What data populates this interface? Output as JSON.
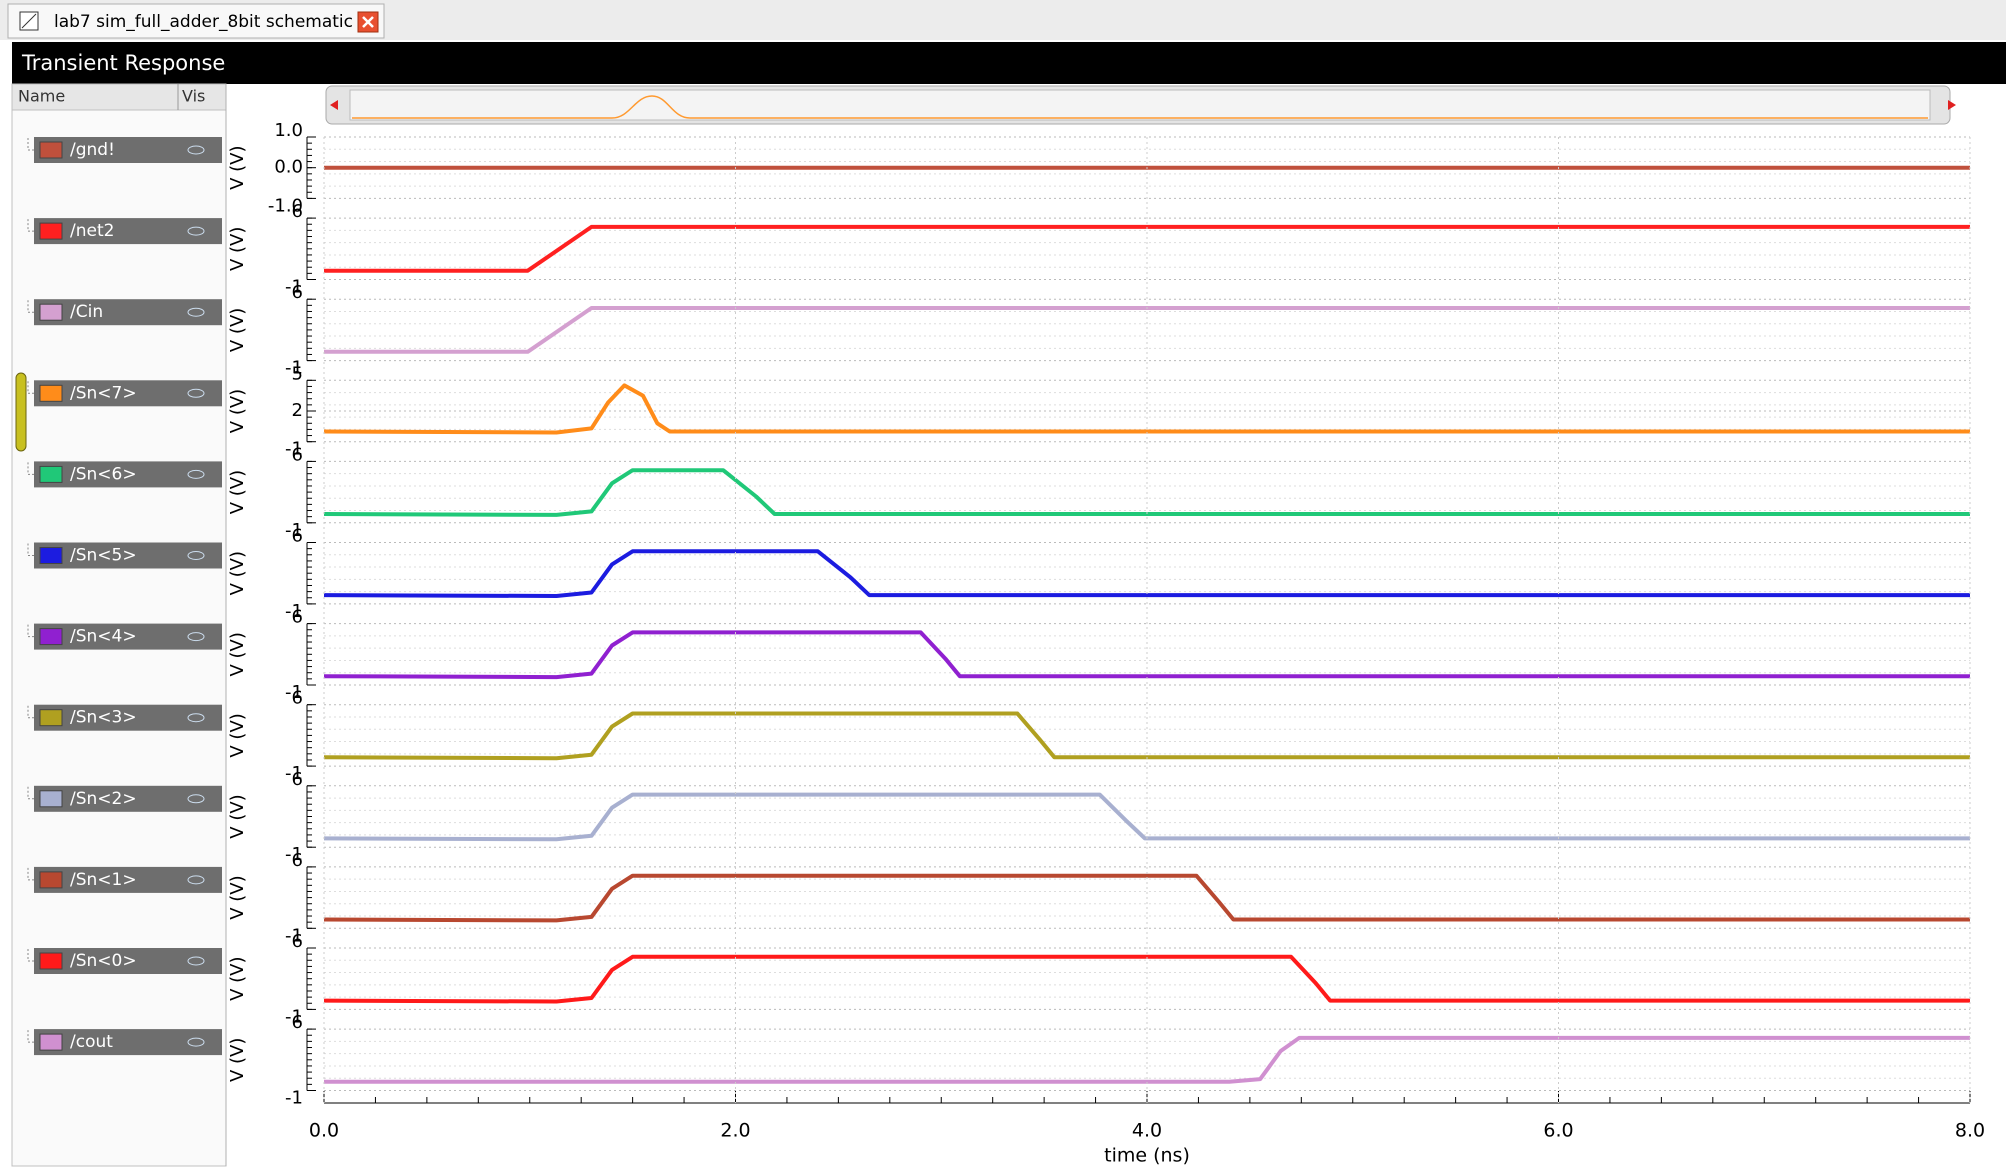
{
  "tab": {
    "title": "lab7 sim_full_adder_8bit schematic"
  },
  "panel": {
    "title": "Transient Response",
    "name_header": "Name",
    "vis_header": "Vis"
  },
  "chart_data": [
    {
      "type": "line",
      "ylabel": "V (V)",
      "x": [
        0,
        8
      ],
      "xlim": [
        0,
        8
      ],
      "ylim": [
        -1,
        1
      ],
      "yticks": [
        {
          "value": -1,
          "label": "-1.0"
        },
        {
          "value": 0,
          "label": "0.0"
        },
        {
          "value": 1,
          "label": "1.0"
        }
      ],
      "grid": true,
      "series": [
        {
          "name": "/gnd!",
          "color": "#c0503c",
          "values": [
            0,
            0
          ]
        }
      ]
    },
    {
      "type": "line",
      "ylabel": "V (V)",
      "x": [
        0,
        0.99,
        1.3,
        8
      ],
      "xlim": [
        0,
        8
      ],
      "ylim": [
        -1,
        6
      ],
      "yticks": [
        -1,
        6
      ],
      "grid": true,
      "series": [
        {
          "name": "/net2",
          "color": "#ff2020",
          "values": [
            0,
            0,
            5,
            5
          ]
        }
      ]
    },
    {
      "type": "line",
      "ylabel": "V (V)",
      "x": [
        0,
        0.99,
        1.3,
        8
      ],
      "xlim": [
        0,
        8
      ],
      "ylim": [
        -1,
        6
      ],
      "yticks": [
        -1,
        6
      ],
      "grid": true,
      "series": [
        {
          "name": "/Cin",
          "color": "#d4a0d0",
          "values": [
            0,
            0,
            5,
            5
          ]
        }
      ]
    },
    {
      "type": "line",
      "ylabel": "V (V)",
      "x": [
        0,
        1.13,
        1.3,
        1.38,
        1.46,
        1.55,
        1.62,
        1.68,
        8
      ],
      "xlim": [
        0,
        8
      ],
      "ylim": [
        -1,
        5
      ],
      "yticks": [
        -1,
        2,
        5
      ],
      "grid": true,
      "series": [
        {
          "name": "/Sn<7>",
          "color": "#ff8c1a",
          "values": [
            0,
            -0.1,
            0.3,
            2.8,
            4.5,
            3.5,
            0.8,
            0,
            0
          ]
        }
      ]
    },
    {
      "type": "line",
      "ylabel": "V (V)",
      "x": [
        0,
        1.13,
        1.3,
        1.4,
        1.5,
        1.94,
        2.1,
        2.19,
        8
      ],
      "xlim": [
        0,
        8
      ],
      "ylim": [
        -1,
        6
      ],
      "yticks": [
        -1,
        6
      ],
      "grid": true,
      "series": [
        {
          "name": "/Sn<6>",
          "color": "#20c878",
          "values": [
            0,
            -0.1,
            0.3,
            3.5,
            5,
            5,
            2,
            0,
            0
          ]
        }
      ]
    },
    {
      "type": "line",
      "ylabel": "V (V)",
      "x": [
        0,
        1.13,
        1.3,
        1.4,
        1.5,
        2.4,
        2.56,
        2.65,
        8
      ],
      "xlim": [
        0,
        8
      ],
      "ylim": [
        -1,
        6
      ],
      "yticks": [
        -1,
        6
      ],
      "grid": true,
      "series": [
        {
          "name": "/Sn<5>",
          "color": "#1c1ce0",
          "values": [
            0,
            -0.1,
            0.3,
            3.5,
            5,
            5,
            2,
            0,
            0
          ]
        }
      ]
    },
    {
      "type": "line",
      "ylabel": "V (V)",
      "x": [
        0,
        1.13,
        1.3,
        1.4,
        1.5,
        2.9,
        3.02,
        3.09,
        8
      ],
      "xlim": [
        0,
        8
      ],
      "ylim": [
        -1,
        6
      ],
      "yticks": [
        -1,
        6
      ],
      "grid": true,
      "series": [
        {
          "name": "/Sn<4>",
          "color": "#9020d0",
          "values": [
            0,
            -0.1,
            0.3,
            3.5,
            5,
            5,
            2,
            0,
            0
          ]
        }
      ]
    },
    {
      "type": "line",
      "ylabel": "V (V)",
      "x": [
        0,
        1.13,
        1.3,
        1.4,
        1.5,
        3.37,
        3.48,
        3.55,
        8
      ],
      "xlim": [
        0,
        8
      ],
      "ylim": [
        -1,
        6
      ],
      "yticks": [
        -1,
        6
      ],
      "grid": true,
      "series": [
        {
          "name": "/Sn<3>",
          "color": "#b0a020",
          "values": [
            0,
            -0.1,
            0.3,
            3.5,
            5,
            5,
            2,
            0,
            0
          ]
        }
      ]
    },
    {
      "type": "line",
      "ylabel": "V (V)",
      "x": [
        0,
        1.13,
        1.3,
        1.4,
        1.5,
        3.77,
        3.9,
        3.99,
        8
      ],
      "xlim": [
        0,
        8
      ],
      "ylim": [
        -1,
        6
      ],
      "yticks": [
        -1,
        6
      ],
      "grid": true,
      "series": [
        {
          "name": "/Sn<2>",
          "color": "#a8b0d0",
          "values": [
            0,
            -0.1,
            0.3,
            3.5,
            5,
            5,
            2,
            0,
            0
          ]
        }
      ]
    },
    {
      "type": "line",
      "ylabel": "V (V)",
      "x": [
        0,
        1.13,
        1.3,
        1.4,
        1.5,
        4.24,
        4.35,
        4.42,
        8
      ],
      "xlim": [
        0,
        8
      ],
      "ylim": [
        -1,
        6
      ],
      "yticks": [
        -1,
        6
      ],
      "grid": true,
      "series": [
        {
          "name": "/Sn<1>",
          "color": "#b84830",
          "values": [
            0,
            -0.1,
            0.3,
            3.5,
            5,
            5,
            2,
            0,
            0
          ]
        }
      ]
    },
    {
      "type": "line",
      "ylabel": "V (V)",
      "x": [
        0,
        1.13,
        1.3,
        1.4,
        1.5,
        4.7,
        4.82,
        4.89,
        8
      ],
      "xlim": [
        0,
        8
      ],
      "ylim": [
        -1,
        6
      ],
      "yticks": [
        -1,
        6
      ],
      "grid": true,
      "series": [
        {
          "name": "/Sn<0>",
          "color": "#ff1a1a",
          "values": [
            0,
            -0.1,
            0.3,
            3.5,
            5,
            5,
            2,
            0,
            0
          ]
        }
      ]
    },
    {
      "type": "line",
      "ylabel": "V (V)",
      "xlabel": "time (ns)",
      "x": [
        0,
        4.4,
        4.55,
        4.65,
        4.74,
        8
      ],
      "xlim": [
        0,
        8
      ],
      "xticks": [
        {
          "value": 0,
          "label": "0.0"
        },
        {
          "value": 2,
          "label": "2.0"
        },
        {
          "value": 4,
          "label": "4.0"
        },
        {
          "value": 6,
          "label": "6.0"
        },
        {
          "value": 8,
          "label": "8.0"
        }
      ],
      "ylim": [
        -1,
        6
      ],
      "yticks": [
        -1,
        6
      ],
      "grid": true,
      "series": [
        {
          "name": "/cout",
          "color": "#d090d0",
          "values": [
            0,
            0,
            0.3,
            3.5,
            5,
            5
          ]
        }
      ]
    }
  ]
}
